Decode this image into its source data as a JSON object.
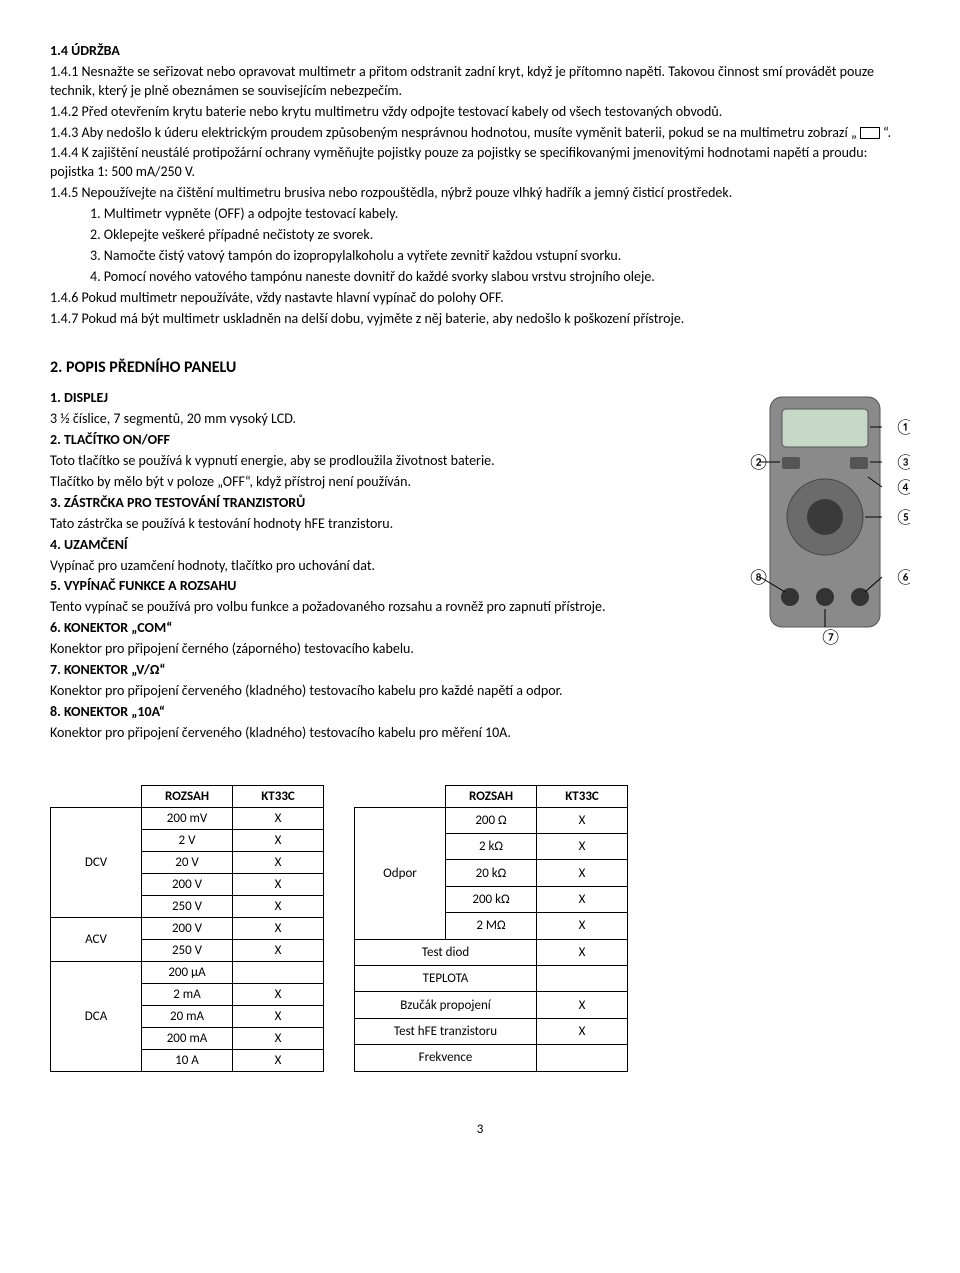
{
  "s14": {
    "title": "1.4 ÚDRŽBA",
    "p1": "1.4.1 Nesnažte se seřizovat nebo opravovat multimetr a přitom odstranit zadní kryt, když je přítomno napětí. Takovou činnost smí provádět pouze technik, který je plně obeznámen se souvisejícím nebezpečím.",
    "p2": "1.4.2 Před otevřením krytu baterie nebo krytu multimetru vždy odpojte testovací kabely od všech testovaných obvodů.",
    "p3a": "1.4.3 Aby nedošlo k úderu elektrickým proudem způsobeným nesprávnou hodnotou, musíte vyměnit baterii, pokud se na multimetru zobrazí „",
    "p3b": "“.",
    "p4": "1.4.4 K zajištění neustálé protipožární ochrany vyměňujte pojistky pouze za pojistky se specifikovanými jmenovitými hodnotami napětí a proudu: pojistka 1: 500 mA/250 V.",
    "p5": "1.4.5 Nepoužívejte na čištění multimetru brusiva nebo rozpouštědla, nýbrž pouze vlhký hadřík a jemný čisticí prostředek.",
    "li1": "1.   Multimetr vypněte (OFF) a odpojte testovací kabely.",
    "li2": "2.   Oklepejte veškeré případné nečistoty ze svorek.",
    "li3": "3.   Namočte čistý vatový tampón do izopropylalkoholu a vytřete zevnitř každou vstupní svorku.",
    "li4": "4.   Pomocí nového vatového tampónu naneste dovnitř do každé svorky slabou vrstvu strojního oleje.",
    "p6": "1.4.6 Pokud multimetr nepoužíváte, vždy nastavte hlavní vypínač do polohy OFF.",
    "p7": "1.4.7 Pokud má být multimetr uskladněn na delší dobu, vyjměte z něj baterie, aby nedošlo k poškození přístroje."
  },
  "s2": {
    "title": "2. POPIS PŘEDNÍHO PANELU",
    "h1": "1. DISPLEJ",
    "t1": "3 ½ číslice, 7 segmentů, 20 mm vysoký LCD.",
    "h2": "2. TLAČÍTKO ON/OFF",
    "t2a": "Toto tlačítko se používá k vypnutí energie, aby se prodloužila životnost baterie.",
    "t2b": "Tlačítko by mělo být v poloze „OFF“, když přístroj není používán.",
    "h3": "3. ZÁSTRČKA PRO TESTOVÁNÍ TRANZISTORŮ",
    "t3": "Tato zástrčka se používá k testování hodnoty hFE tranzistoru.",
    "h4": "4. UZAMČENÍ",
    "t4": "Vypínač pro uzamčení hodnoty, tlačítko pro uchování dat.",
    "h5": "5. VYPÍNAČ FUNKCE A ROZSAHU",
    "t5": "Tento vypínač se používá pro volbu funkce a požadovaného rozsahu a rovněž pro zapnutí přístroje.",
    "h6": "6. KONEKTOR „COM“",
    "t6": "Konektor pro připojení černého (záporného) testovacího kabelu.",
    "h7": "7. KONEKTOR „V/Ω“",
    "t7": "Konektor pro připojení červeného (kladného) testovacího kabelu pro každé napětí a odpor.",
    "h8": "8. KONEKTOR „10A“",
    "t8": "Konektor pro připojení červeného (kladného) testovacího kabelu pro měření 10A."
  },
  "tableL": {
    "h1": "ROZSAH",
    "h2": "KT33C",
    "rows": [
      {
        "cat": "DCV",
        "span": 5,
        "r": "200 mV",
        "v": "X"
      },
      {
        "r": "2 V",
        "v": "X"
      },
      {
        "r": "20 V",
        "v": "X"
      },
      {
        "r": "200 V",
        "v": "X"
      },
      {
        "r": "250 V",
        "v": "X"
      },
      {
        "cat": "ACV",
        "span": 2,
        "r": "200 V",
        "v": "X"
      },
      {
        "r": "250 V",
        "v": "X"
      },
      {
        "cat": "DCA",
        "span": 5,
        "r": "200 µA",
        "v": ""
      },
      {
        "r": "2 mA",
        "v": "X"
      },
      {
        "r": "20 mA",
        "v": "X"
      },
      {
        "r": "200 mA",
        "v": "X"
      },
      {
        "r": "10 A",
        "v": "X"
      }
    ]
  },
  "tableR": {
    "h1": "ROZSAH",
    "h2": "KT33C",
    "rows": [
      {
        "cat": "Odpor",
        "span": 5,
        "r": "200 Ω",
        "v": "X"
      },
      {
        "r": "2 kΩ",
        "v": "X"
      },
      {
        "r": "20 kΩ",
        "v": "X"
      },
      {
        "r": "200 kΩ",
        "v": "X"
      },
      {
        "r": "2 MΩ",
        "v": "X"
      },
      {
        "full": "Test diod",
        "v": "X"
      },
      {
        "full": "TEPLOTA",
        "v": ""
      },
      {
        "full": "Bzučák propojení",
        "v": "X"
      },
      {
        "full": "Test hFE tranzistoru",
        "v": "X"
      },
      {
        "full": "Frekvence",
        "v": ""
      }
    ]
  },
  "pagenum": "3",
  "multimeter": {
    "body_color": "#8a8a8a",
    "screen_color": "#c8d8c8",
    "labels": [
      "①",
      "②",
      "③",
      "④",
      "⑤",
      "⑥",
      "⑦",
      "⑧"
    ]
  }
}
